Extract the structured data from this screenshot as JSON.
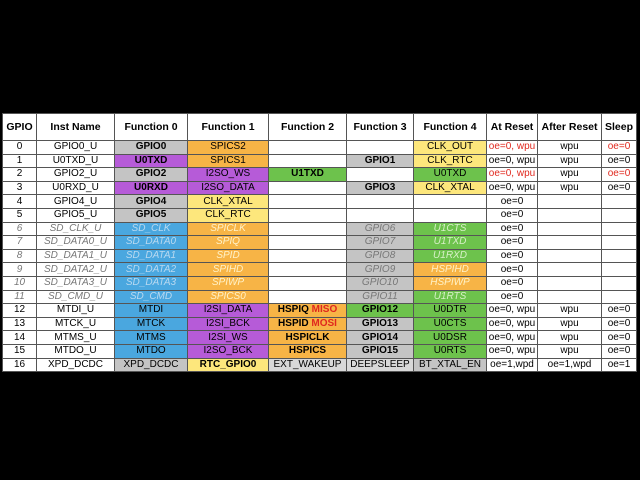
{
  "table": {
    "header": [
      "GPIO",
      "Inst Name",
      "Function 0",
      "Function 1",
      "Function 2",
      "Function 3",
      "Function 4",
      "At Reset",
      "After Reset",
      "Sleep"
    ],
    "rows": [
      [
        "0",
        "GPIO0_U",
        "GPIO0",
        "SPICS2",
        "",
        "",
        "CLK_OUT",
        "oe=0, wpu",
        "wpu",
        "oe=0"
      ],
      [
        "1",
        "U0TXD_U",
        "U0TXD",
        "SPICS1",
        "",
        "GPIO1",
        "CLK_RTC",
        "oe=0, wpu",
        "wpu",
        "oe=0"
      ],
      [
        "2",
        "GPIO2_U",
        "GPIO2",
        "I2SO_WS",
        "U1TXD",
        "",
        "U0TXD",
        "oe=0, wpu",
        "wpu",
        "oe=0"
      ],
      [
        "3",
        "U0RXD_U",
        "U0RXD",
        "I2SO_DATA",
        "",
        "GPIO3",
        "CLK_XTAL",
        "oe=0, wpu",
        "wpu",
        "oe=0"
      ],
      [
        "4",
        "GPIO4_U",
        "GPIO4",
        "CLK_XTAL",
        "",
        "",
        "",
        "oe=0",
        "",
        ""
      ],
      [
        "5",
        "GPIO5_U",
        "GPIO5",
        "CLK_RTC",
        "",
        "",
        "",
        "oe=0",
        "",
        ""
      ],
      [
        "6",
        "SD_CLK_U",
        "SD_CLK",
        "SPICLK",
        "",
        "GPIO6",
        "U1CTS",
        "oe=0",
        "",
        ""
      ],
      [
        "7",
        "SD_DATA0_U",
        "SD_DATA0",
        "SPIQ",
        "",
        "GPIO7",
        "U1TXD",
        "oe=0",
        "",
        ""
      ],
      [
        "8",
        "SD_DATA1_U",
        "SD_DATA1",
        "SPID",
        "",
        "GPIO8",
        "U1RXD",
        "oe=0",
        "",
        ""
      ],
      [
        "9",
        "SD_DATA2_U",
        "SD_DATA2",
        "SPIHD",
        "",
        "GPIO9",
        "HSPIHD",
        "oe=0",
        "",
        ""
      ],
      [
        "10",
        "SD_DATA3_U",
        "SD_DATA3",
        "SPIWP",
        "",
        "GPIO10",
        "HSPIWP",
        "oe=0",
        "",
        ""
      ],
      [
        "11",
        "SD_CMD_U",
        "SD_CMD",
        "SPICS0",
        "",
        "GPIO11",
        "U1RTS",
        "oe=0",
        "",
        ""
      ],
      [
        "12",
        "MTDI_U",
        "MTDI",
        "I2SI_DATA",
        {
          "label": "HSPIQ",
          "signal": "MISO"
        },
        "GPIO12",
        "U0DTR",
        "oe=0, wpu",
        "wpu",
        "oe=0"
      ],
      [
        "13",
        "MTCK_U",
        "MTCK",
        "I2SI_BCK",
        {
          "label": "HSPID",
          "signal": "MOSI"
        },
        "GPIO13",
        "U0CTS",
        "oe=0, wpu",
        "wpu",
        "oe=0"
      ],
      [
        "14",
        "MTMS_U",
        "MTMS",
        "I2SI_WS",
        "HSPICLK",
        "GPIO14",
        "U0DSR",
        "oe=0, wpu",
        "wpu",
        "oe=0"
      ],
      [
        "15",
        "MTDO_U",
        "MTDO",
        "I2SO_BCK",
        "HSPICS",
        "GPIO15",
        "U0RTS",
        "oe=0, wpu",
        "wpu",
        "oe=0"
      ],
      [
        "16",
        "XPD_DCDC",
        "XPD_DCDC",
        "RTC_GPIO0",
        "EXT_WAKEUP",
        "DEEPSLEEP",
        "BT_XTAL_EN",
        "oe=1,wpd",
        "oe=1,wpd",
        "oe=1"
      ]
    ]
  }
}
